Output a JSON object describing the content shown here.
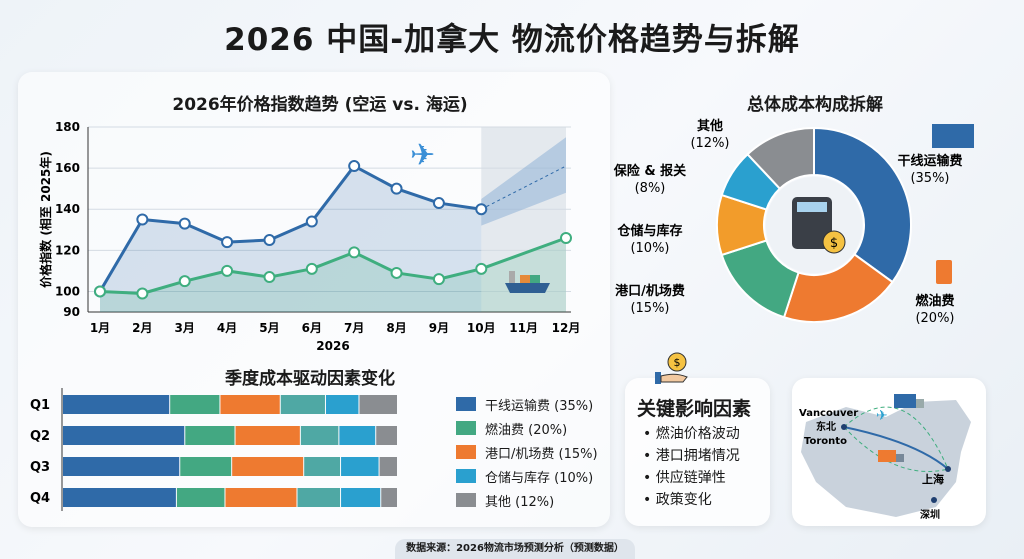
{
  "title": "2026 中国-加拿大 物流价格趋势与拆解",
  "chart_data": [
    {
      "type": "line",
      "title": "2026年价格指数趋势 (空运 vs. 海运)",
      "xlabel": "2026",
      "ylabel": "价格指数 (相至 2025年)",
      "categories": [
        "1月",
        "2月",
        "3月",
        "4月",
        "5月",
        "6月",
        "7月",
        "8月",
        "9月",
        "10月",
        "11月",
        "12月"
      ],
      "ylim": [
        90,
        180
      ],
      "yticks": [
        90,
        100,
        120,
        140,
        160,
        180
      ],
      "grid": true,
      "forecast_from": "10月",
      "series": [
        {
          "icon": "airplane-icon",
          "color": "#2f6aa8",
          "values": [
            100,
            135,
            133,
            124,
            125,
            134,
            161,
            150,
            143,
            140,
            null,
            null
          ],
          "forecast": {
            "values": [
              140,
              161
            ],
            "at": [
              "10月",
              "12月"
            ],
            "band_low": [
              132,
              148
            ],
            "band_high": [
              145,
              175
            ]
          }
        },
        {
          "icon": "cargo-ship-icon",
          "color": "#3fae7f",
          "values": [
            100,
            99,
            105,
            110,
            107,
            111,
            119,
            109,
            106,
            111,
            null,
            126
          ]
        }
      ]
    },
    {
      "type": "pie",
      "title": "总体成本构成拆解",
      "hole": true,
      "slices": [
        {
          "label": "干线运输费",
          "pct": "(35%)",
          "value": 35,
          "color": "#2f6aa8"
        },
        {
          "label": "燃油费",
          "pct": "(20%)",
          "value": 20,
          "color": "#ee7a30"
        },
        {
          "label": "港口/机场费",
          "pct": "(15%)",
          "value": 15,
          "color": "#43a882"
        },
        {
          "label": "仓储与库存",
          "pct": "(10%)",
          "value": 10,
          "color": "#f29c2b"
        },
        {
          "label": "保险 & 报关",
          "pct": "(8%)",
          "value": 8,
          "color": "#2aa0cf"
        },
        {
          "label": "其他",
          "pct": "(12%)",
          "value": 12,
          "color": "#8a8d91"
        }
      ]
    },
    {
      "type": "bar",
      "stacked": true,
      "orientation": "horizontal",
      "title": "季度成本驱动因素变化",
      "categories": [
        "Q1",
        "Q2",
        "Q3",
        "Q4"
      ],
      "xlim": [
        0,
        100
      ],
      "series": [
        {
          "name": "干线运输费 (35%)",
          "color": "#2f6aa8",
          "values": [
            32,
            36.5,
            35,
            34
          ]
        },
        {
          "name": "燃油费 (20%)",
          "color": "#43a882",
          "values": [
            15,
            15,
            15.5,
            14.5
          ]
        },
        {
          "name": "港口/机场费 (15%)",
          "color": "#ee7a30",
          "values": [
            18,
            19.5,
            21.5,
            21.5
          ]
        },
        {
          "name": "",
          "color": "#4fa8a4",
          "values": [
            13.5,
            11.5,
            11,
            13
          ]
        },
        {
          "name": "仓储与库存 (10%)",
          "color": "#2aa0cf",
          "values": [
            10,
            11,
            11.5,
            12
          ]
        },
        {
          "name": "其他 (12%)",
          "color": "#8a8d91",
          "values": [
            11.5,
            6.5,
            5.5,
            5
          ]
        }
      ],
      "legend": [
        "干线运输费 (35%)",
        "燃油费 (20%)",
        "港口/机场费 (15%)",
        "仓储与库存 (10%)",
        "其他 (12%)"
      ],
      "legend_colors": [
        "#2f6aa8",
        "#43a882",
        "#ee7a30",
        "#2aa0cf",
        "#8a8d91"
      ]
    }
  ],
  "key_factors": {
    "title": "关键影响因素",
    "items": [
      "燃油价格波动",
      "港口拥堵情况",
      "供应链弹性",
      "政策变化"
    ]
  },
  "map": {
    "labels": [
      "Vancouver",
      "东北",
      "Toronto",
      "上海",
      "深圳"
    ]
  },
  "footer": "数据来源：2026物流市场预测分析（预测数据）"
}
